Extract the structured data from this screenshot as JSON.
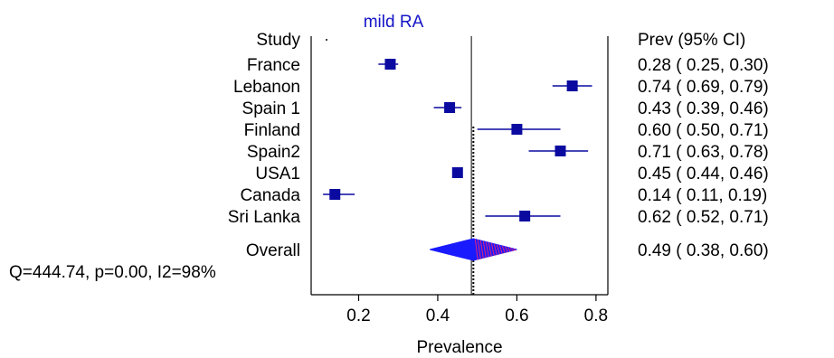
{
  "chart_data": {
    "type": "forest",
    "title": "mild RA",
    "xlabel": "Prevalence",
    "study_header": "Study",
    "estimate_header": "Prev (95% CI)",
    "xlim": [
      0.08,
      0.83
    ],
    "xticks": [
      0.2,
      0.4,
      0.6,
      0.8
    ],
    "xtick_labels": [
      "0.2",
      "0.4",
      "0.6",
      "0.8"
    ],
    "reference_line": 0.49,
    "studies": [
      {
        "name": "France",
        "est": 0.28,
        "lo": 0.25,
        "hi": 0.3,
        "text": "0.28 ( 0.25, 0.30)"
      },
      {
        "name": "Lebanon",
        "est": 0.74,
        "lo": 0.69,
        "hi": 0.79,
        "text": "0.74 ( 0.69, 0.79)"
      },
      {
        "name": "Spain 1",
        "est": 0.43,
        "lo": 0.39,
        "hi": 0.46,
        "text": "0.43 ( 0.39, 0.46)"
      },
      {
        "name": "Finland",
        "est": 0.6,
        "lo": 0.5,
        "hi": 0.71,
        "text": "0.60 ( 0.50, 0.71)"
      },
      {
        "name": "Spain2",
        "est": 0.71,
        "lo": 0.63,
        "hi": 0.78,
        "text": "0.71 ( 0.63, 0.78)"
      },
      {
        "name": "USA1",
        "est": 0.45,
        "lo": 0.44,
        "hi": 0.46,
        "text": "0.45 ( 0.44, 0.46)"
      },
      {
        "name": "Canada",
        "est": 0.14,
        "lo": 0.11,
        "hi": 0.19,
        "text": "0.14 ( 0.11, 0.19)"
      },
      {
        "name": "Sri Lanka",
        "est": 0.62,
        "lo": 0.52,
        "hi": 0.71,
        "text": "0.62 ( 0.52, 0.71)"
      }
    ],
    "overall": {
      "name": "Overall",
      "est": 0.49,
      "lo": 0.38,
      "hi": 0.6,
      "text": "0.49 ( 0.38, 0.60)"
    },
    "heterogeneity": "Q=444.74, p=0.00, I2=98%",
    "colors": {
      "marker": "#0a0aa0",
      "diamond": "#1a1aff",
      "diamond_hatch": "#e0207a",
      "title": "#1414c8"
    }
  }
}
